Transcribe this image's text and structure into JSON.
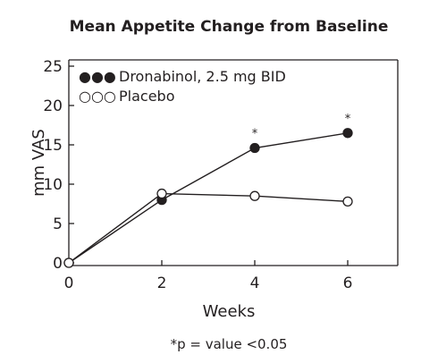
{
  "chart_data": {
    "type": "line",
    "title": "Mean Appetite Change from Baseline",
    "xlabel": "Weeks",
    "ylabel": "mm VAS",
    "xlim": [
      0,
      7
    ],
    "ylim": [
      0,
      26
    ],
    "x_ticks": [
      "0",
      "2",
      "4",
      "6"
    ],
    "y_ticks": [
      "0",
      "5",
      "10",
      "15",
      "20",
      "25"
    ],
    "grid": false,
    "legend_position": "top-left",
    "series": [
      {
        "name": "Dronabinol, 2.5 mg BID",
        "legend_marker": "●●●",
        "marker": "filled-circle",
        "x": [
          0,
          2,
          4,
          6
        ],
        "y": [
          0,
          8,
          14.6,
          16.5
        ]
      },
      {
        "name": "Placebo",
        "legend_marker": "○○○",
        "marker": "open-circle",
        "x": [
          0,
          2,
          4,
          6
        ],
        "y": [
          0,
          8.8,
          8.5,
          7.8
        ]
      }
    ],
    "annotations": [
      {
        "text": "*",
        "x": 4
      },
      {
        "text": "*",
        "x": 6
      }
    ],
    "footnote": "*p = value <0.05"
  },
  "colors": {
    "ink": "#231f20",
    "background": "#ffffff"
  }
}
